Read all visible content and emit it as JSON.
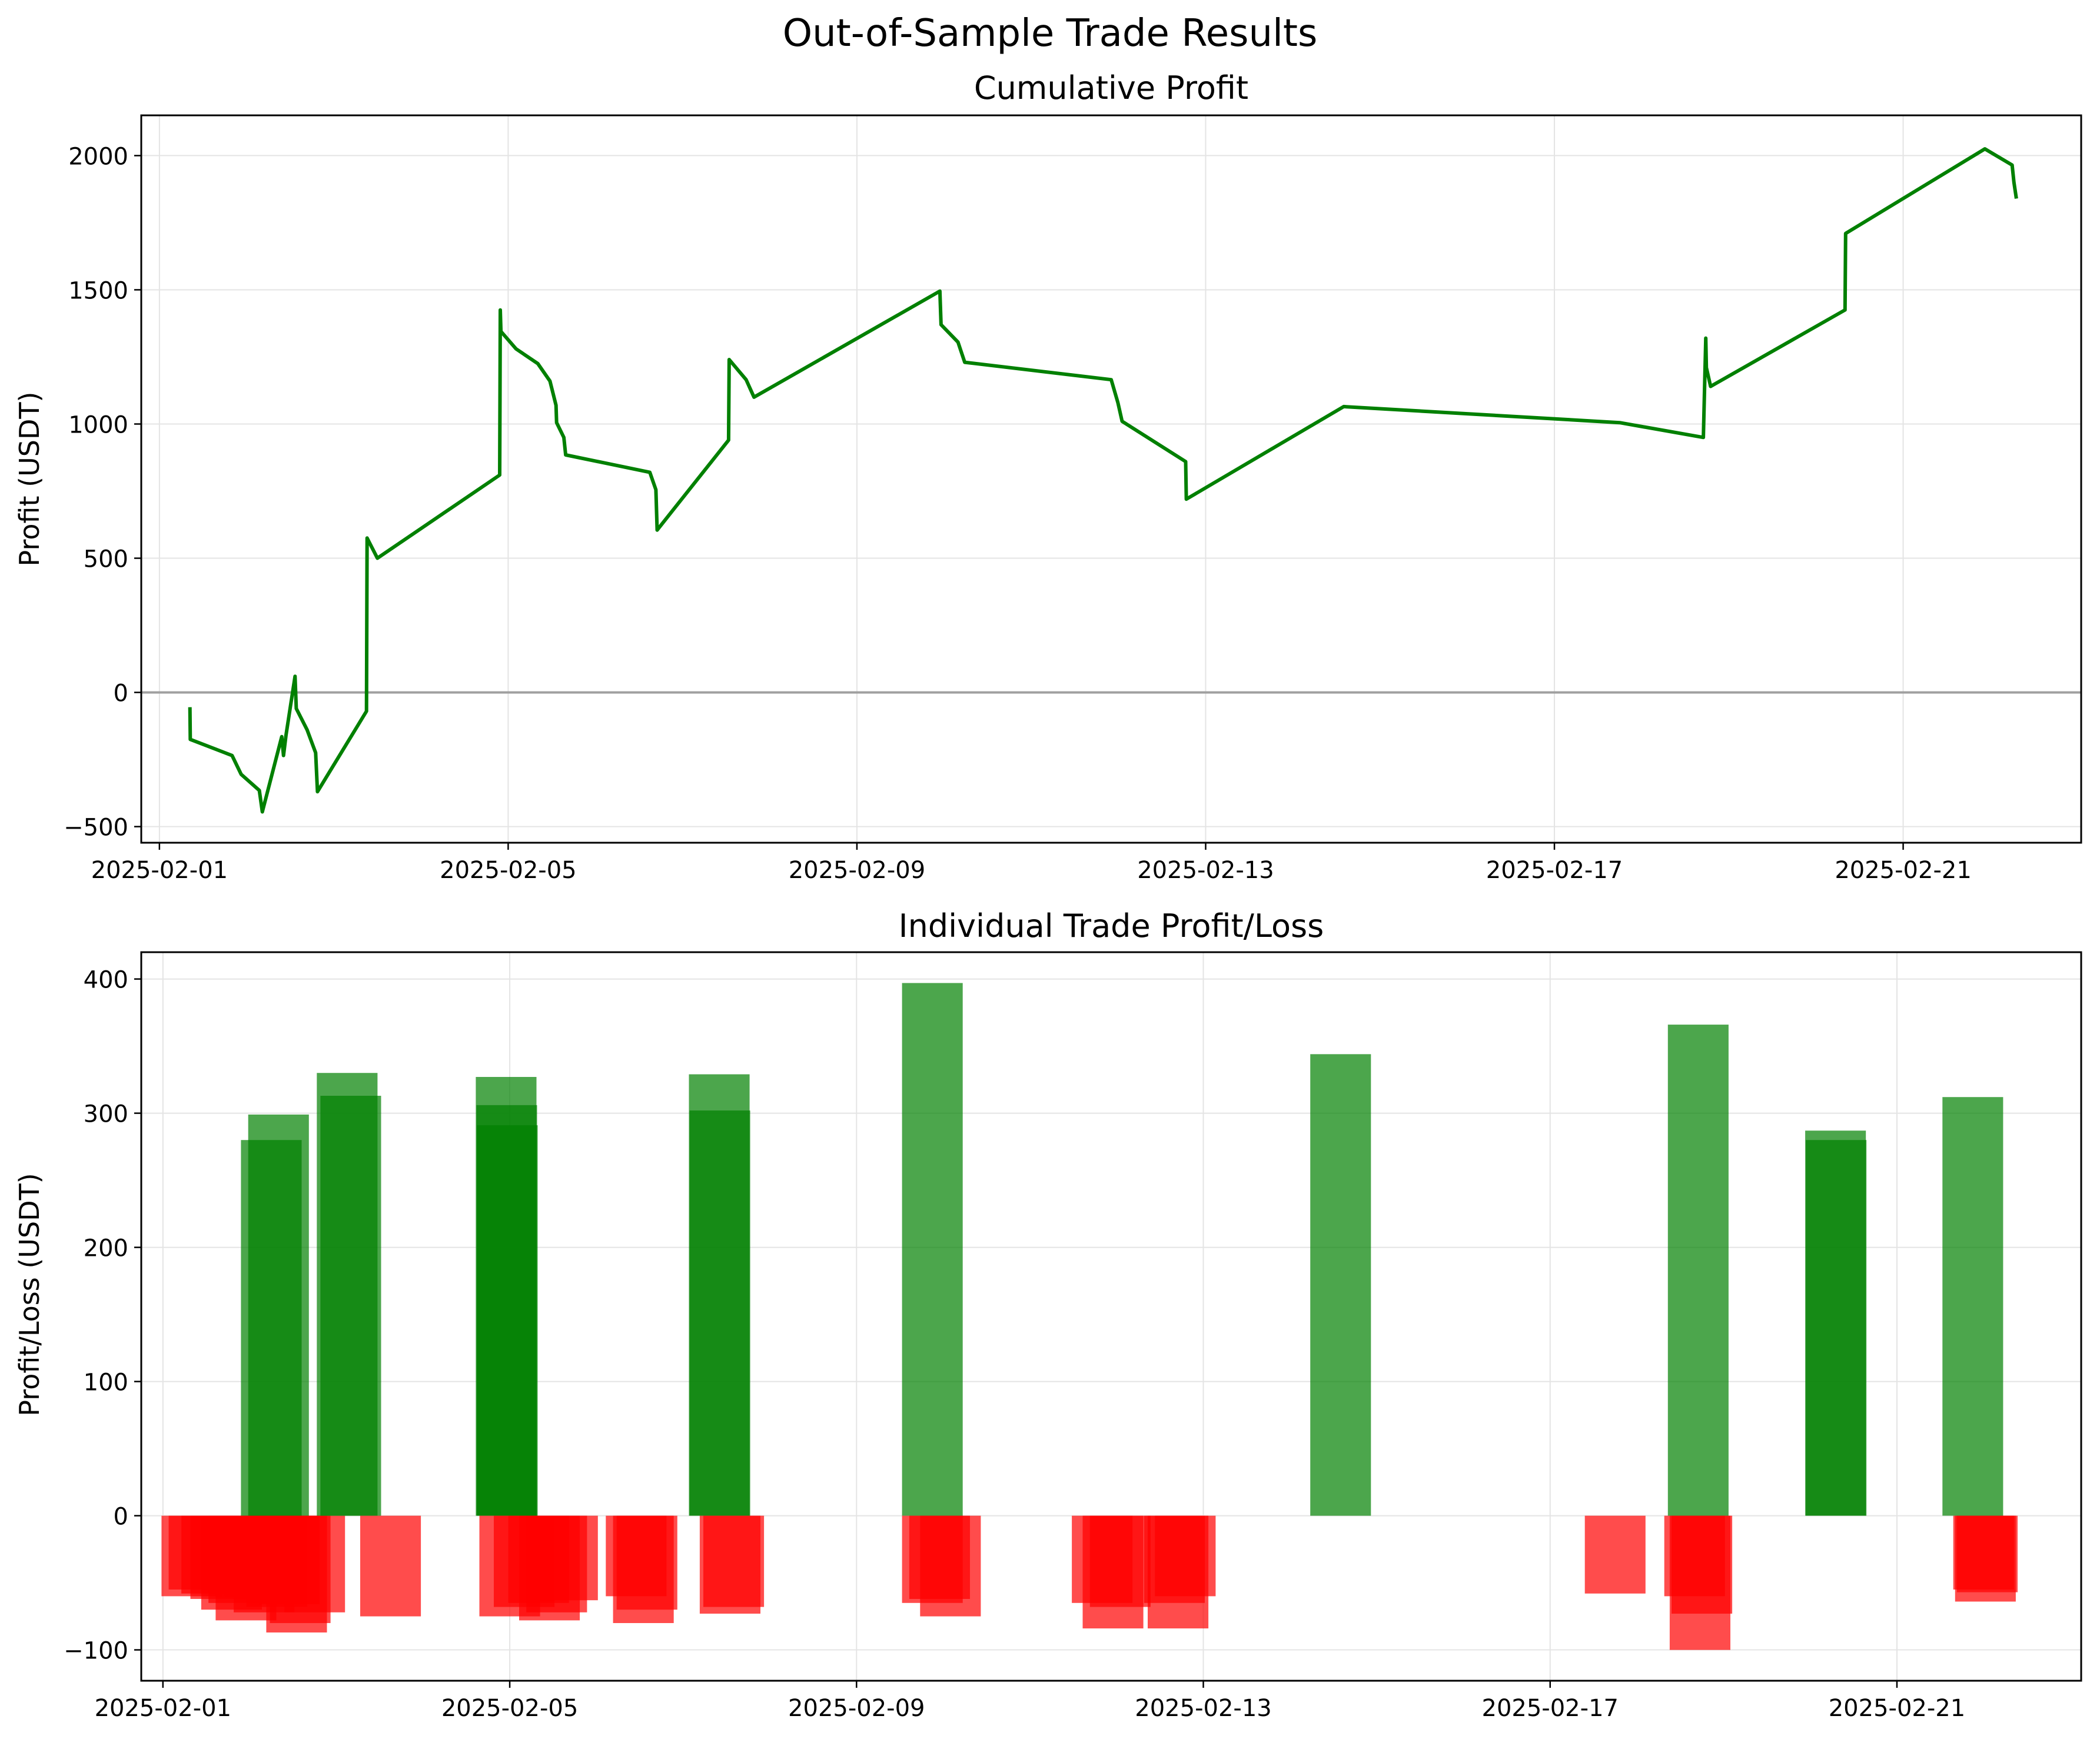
{
  "figure": {
    "suptitle": "Out-of-Sample Trade Results",
    "colors": {
      "profit_line": "#008000",
      "win_bar": "#008000",
      "loss_bar": "#ff0000",
      "zero_line": "#a0a0a0",
      "grid": "#e4e4e4"
    }
  },
  "chart_data": [
    {
      "type": "line",
      "title": "Cumulative Profit",
      "xlabel": "",
      "ylabel": "Profit (USDT)",
      "x_axis": "date",
      "xlim": [
        "2025-01-31T19:00",
        "2025-02-23T01:00"
      ],
      "xticks": [
        "2025-02-01",
        "2025-02-05",
        "2025-02-09",
        "2025-02-13",
        "2025-02-17",
        "2025-02-21"
      ],
      "ylim": [
        -560,
        2150
      ],
      "yticks": [
        -500,
        0,
        500,
        1000,
        1500,
        2000
      ],
      "grid": true,
      "reference_line": 0,
      "series": [
        {
          "points": [
            [
              "2025-02-01T08:24",
              -55
            ],
            [
              "2025-02-01T08:30",
              -175
            ],
            [
              "2025-02-01T20:00",
              -235
            ],
            [
              "2025-02-01T22:30",
              -305
            ],
            [
              "2025-02-02T03:30",
              -365
            ],
            [
              "2025-02-02T04:20",
              -445
            ],
            [
              "2025-02-02T09:40",
              -165
            ],
            [
              "2025-02-02T10:10",
              -235
            ],
            [
              "2025-02-02T10:50",
              -160
            ],
            [
              "2025-02-02T13:20",
              60
            ],
            [
              "2025-02-02T13:40",
              -60
            ],
            [
              "2025-02-02T16:40",
              -140
            ],
            [
              "2025-02-02T19:00",
              -225
            ],
            [
              "2025-02-02T19:30",
              -370
            ],
            [
              "2025-02-03T09:00",
              -70
            ],
            [
              "2025-02-03T09:10",
              575
            ],
            [
              "2025-02-03T12:00",
              500
            ],
            [
              "2025-02-04T21:40",
              810
            ],
            [
              "2025-02-04T21:45",
              1095
            ],
            [
              "2025-02-04T21:50",
              1425
            ],
            [
              "2025-02-04T22:00",
              1345
            ],
            [
              "2025-02-05T02:10",
              1280
            ],
            [
              "2025-02-05T08:10",
              1225
            ],
            [
              "2025-02-05T11:30",
              1160
            ],
            [
              "2025-02-05T13:10",
              1070
            ],
            [
              "2025-02-05T13:20",
              1005
            ],
            [
              "2025-02-05T15:20",
              950
            ],
            [
              "2025-02-05T15:50",
              885
            ],
            [
              "2025-02-06T15:00",
              820
            ],
            [
              "2025-02-06T16:40",
              755
            ],
            [
              "2025-02-06T17:00",
              605
            ],
            [
              "2025-02-07T12:40",
              940
            ],
            [
              "2025-02-07T12:50",
              1240
            ],
            [
              "2025-02-07T17:30",
              1165
            ],
            [
              "2025-02-07T19:40",
              1100
            ],
            [
              "2025-02-09T22:50",
              1495
            ],
            [
              "2025-02-09T23:10",
              1370
            ],
            [
              "2025-02-10T03:50",
              1305
            ],
            [
              "2025-02-10T05:40",
              1230
            ],
            [
              "2025-02-11T22:00",
              1165
            ],
            [
              "2025-02-11T23:50",
              1080
            ],
            [
              "2025-02-12T01:00",
              1010
            ],
            [
              "2025-02-12T18:30",
              860
            ],
            [
              "2025-02-12T18:40",
              720
            ],
            [
              "2025-02-14T14:00",
              1065
            ],
            [
              "2025-02-17T18:00",
              1005
            ],
            [
              "2025-02-18T17:00",
              950
            ],
            [
              "2025-02-18T17:40",
              1320
            ],
            [
              "2025-02-18T17:50",
              1210
            ],
            [
              "2025-02-18T19:00",
              1140
            ],
            [
              "2025-02-20T08:00",
              1425
            ],
            [
              "2025-02-20T08:10",
              1710
            ],
            [
              "2025-02-21T22:30",
              2025
            ],
            [
              "2025-02-22T06:00",
              1965
            ],
            [
              "2025-02-22T06:30",
              1900
            ],
            [
              "2025-02-22T07:10",
              1840
            ]
          ]
        }
      ]
    },
    {
      "type": "bar",
      "title": "Individual Trade Profit/Loss",
      "xlabel": "",
      "ylabel": "Profit/Loss (USDT)",
      "x_axis": "date",
      "xlim": [
        "2025-01-31T18:00",
        "2025-02-23T03:00"
      ],
      "xticks": [
        "2025-02-01",
        "2025-02-05",
        "2025-02-09",
        "2025-02-13",
        "2025-02-17",
        "2025-02-21"
      ],
      "ylim": [
        -123,
        420
      ],
      "yticks": [
        -100,
        0,
        100,
        200,
        300,
        400
      ],
      "grid": true,
      "bar_width_days": 0.7,
      "bars": [
        {
          "x": "2025-02-01T08:00",
          "value": -60
        },
        {
          "x": "2025-02-01T10:00",
          "value": -55
        },
        {
          "x": "2025-02-01T13:30",
          "value": -58
        },
        {
          "x": "2025-02-01T16:00",
          "value": -62
        },
        {
          "x": "2025-02-01T19:00",
          "value": -70
        },
        {
          "x": "2025-02-01T21:00",
          "value": -65
        },
        {
          "x": "2025-02-01T23:00",
          "value": -78
        },
        {
          "x": "2025-02-02T01:30",
          "value": -60
        },
        {
          "x": "2025-02-02T06:00",
          "value": 280
        },
        {
          "x": "2025-02-02T04:00",
          "value": -72
        },
        {
          "x": "2025-02-02T08:00",
          "value": 299
        },
        {
          "x": "2025-02-02T07:30",
          "value": -68
        },
        {
          "x": "2025-02-02T11:00",
          "value": -66
        },
        {
          "x": "2025-02-02T14:00",
          "value": -80
        },
        {
          "x": "2025-02-02T13:00",
          "value": -87
        },
        {
          "x": "2025-02-02T18:00",
          "value": -72
        },
        {
          "x": "2025-02-03T03:00",
          "value": 330
        },
        {
          "x": "2025-02-03T04:00",
          "value": 313
        },
        {
          "x": "2025-02-03T15:00",
          "value": -75
        },
        {
          "x": "2025-02-04T23:00",
          "value": 327
        },
        {
          "x": "2025-02-04T23:10",
          "value": 306
        },
        {
          "x": "2025-02-04T23:20",
          "value": 291
        },
        {
          "x": "2025-02-05T00:00",
          "value": -75
        },
        {
          "x": "2025-02-05T04:00",
          "value": -68
        },
        {
          "x": "2025-02-05T08:00",
          "value": -65
        },
        {
          "x": "2025-02-05T11:00",
          "value": -78
        },
        {
          "x": "2025-02-05T13:00",
          "value": -72
        },
        {
          "x": "2025-02-05T16:00",
          "value": -63
        },
        {
          "x": "2025-02-06T11:00",
          "value": -60
        },
        {
          "x": "2025-02-06T13:00",
          "value": -80
        },
        {
          "x": "2025-02-06T14:00",
          "value": -70
        },
        {
          "x": "2025-02-07T10:00",
          "value": 329
        },
        {
          "x": "2025-02-07T10:10",
          "value": 302
        },
        {
          "x": "2025-02-07T13:00",
          "value": -73
        },
        {
          "x": "2025-02-07T14:00",
          "value": -68
        },
        {
          "x": "2025-02-09T21:00",
          "value": 397
        },
        {
          "x": "2025-02-09T21:00",
          "value": -65
        },
        {
          "x": "2025-02-10T02:00",
          "value": -75
        },
        {
          "x": "2025-02-09T23:00",
          "value": -62
        },
        {
          "x": "2025-02-11T20:00",
          "value": -65
        },
        {
          "x": "2025-02-11T23:00",
          "value": -84
        },
        {
          "x": "2025-02-12T01:00",
          "value": -68
        },
        {
          "x": "2025-02-12T16:00",
          "value": -65
        },
        {
          "x": "2025-02-12T17:00",
          "value": -84
        },
        {
          "x": "2025-02-12T19:00",
          "value": -60
        },
        {
          "x": "2025-02-14T14:00",
          "value": 344
        },
        {
          "x": "2025-02-17T18:00",
          "value": -58
        },
        {
          "x": "2025-02-18T17:00",
          "value": 366
        },
        {
          "x": "2025-02-18T16:00",
          "value": -60
        },
        {
          "x": "2025-02-18T17:30",
          "value": -100
        },
        {
          "x": "2025-02-18T18:00",
          "value": -73
        },
        {
          "x": "2025-02-20T07:00",
          "value": 287
        },
        {
          "x": "2025-02-20T07:10",
          "value": 280
        },
        {
          "x": "2025-02-21T21:00",
          "value": 312
        },
        {
          "x": "2025-02-22T00:00",
          "value": -55
        },
        {
          "x": "2025-02-22T00:30",
          "value": -64
        },
        {
          "x": "2025-02-22T01:00",
          "value": -57
        }
      ]
    }
  ]
}
